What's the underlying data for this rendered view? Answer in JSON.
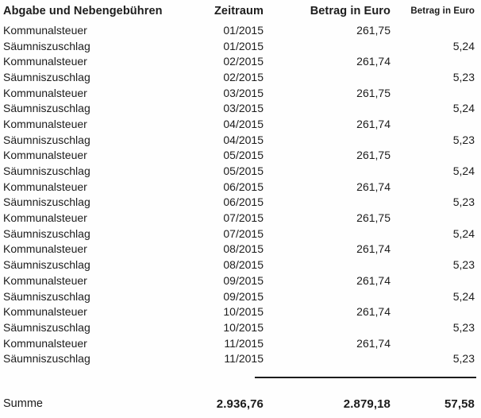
{
  "page": {
    "background_color": "#fefefe",
    "text_color": "#1c1c1c"
  },
  "table": {
    "headers": {
      "name": "Abgabe und Nebengebühren",
      "period": "Zeitraum",
      "amount1": "Betrag in Euro",
      "amount2": "Betrag in Euro"
    },
    "rows": [
      {
        "name": "Kommunalsteuer",
        "period": "01/2015",
        "amount1": "261,75",
        "amount2": ""
      },
      {
        "name": "Säumniszuschlag",
        "period": "01/2015",
        "amount1": "",
        "amount2": "5,24"
      },
      {
        "name": "Kommunalsteuer",
        "period": "02/2015",
        "amount1": "261,74",
        "amount2": ""
      },
      {
        "name": "Säumniszuschlag",
        "period": "02/2015",
        "amount1": "",
        "amount2": "5,23"
      },
      {
        "name": "Kommunalsteuer",
        "period": "03/2015",
        "amount1": "261,75",
        "amount2": ""
      },
      {
        "name": "Säumniszuschlag",
        "period": "03/2015",
        "amount1": "",
        "amount2": "5,24"
      },
      {
        "name": "Kommunalsteuer",
        "period": "04/2015",
        "amount1": "261,74",
        "amount2": ""
      },
      {
        "name": "Säumniszuschlag",
        "period": "04/2015",
        "amount1": "",
        "amount2": "5,23"
      },
      {
        "name": "Kommunalsteuer",
        "period": "05/2015",
        "amount1": "261,75",
        "amount2": ""
      },
      {
        "name": "Säumniszuschlag",
        "period": "05/2015",
        "amount1": "",
        "amount2": "5,24"
      },
      {
        "name": "Kommunalsteuer",
        "period": "06/2015",
        "amount1": "261,74",
        "amount2": ""
      },
      {
        "name": "Säumniszuschlag",
        "period": "06/2015",
        "amount1": "",
        "amount2": "5,23"
      },
      {
        "name": "Kommunalsteuer",
        "period": "07/2015",
        "amount1": "261,75",
        "amount2": ""
      },
      {
        "name": "Säumniszuschlag",
        "period": "07/2015",
        "amount1": "",
        "amount2": "5,24"
      },
      {
        "name": "Kommunalsteuer",
        "period": "08/2015",
        "amount1": "261,74",
        "amount2": ""
      },
      {
        "name": "Säumniszuschlag",
        "period": "08/2015",
        "amount1": "",
        "amount2": "5,23"
      },
      {
        "name": "Kommunalsteuer",
        "period": "09/2015",
        "amount1": "261,74",
        "amount2": ""
      },
      {
        "name": "Säumniszuschlag",
        "period": "09/2015",
        "amount1": "",
        "amount2": "5,24"
      },
      {
        "name": "Kommunalsteuer",
        "period": "10/2015",
        "amount1": "261,74",
        "amount2": ""
      },
      {
        "name": "Säumniszuschlag",
        "period": "10/2015",
        "amount1": "",
        "amount2": "5,23"
      },
      {
        "name": "Kommunalsteuer",
        "period": "11/2015",
        "amount1": "261,74",
        "amount2": ""
      },
      {
        "name": "Säumniszuschlag",
        "period": "11/2015",
        "amount1": "",
        "amount2": "5,23"
      }
    ],
    "summary": {
      "label": "Summe",
      "grand_total": "2.936,76",
      "amount1_total": "2.879,18",
      "amount2_total": "57,58"
    }
  }
}
